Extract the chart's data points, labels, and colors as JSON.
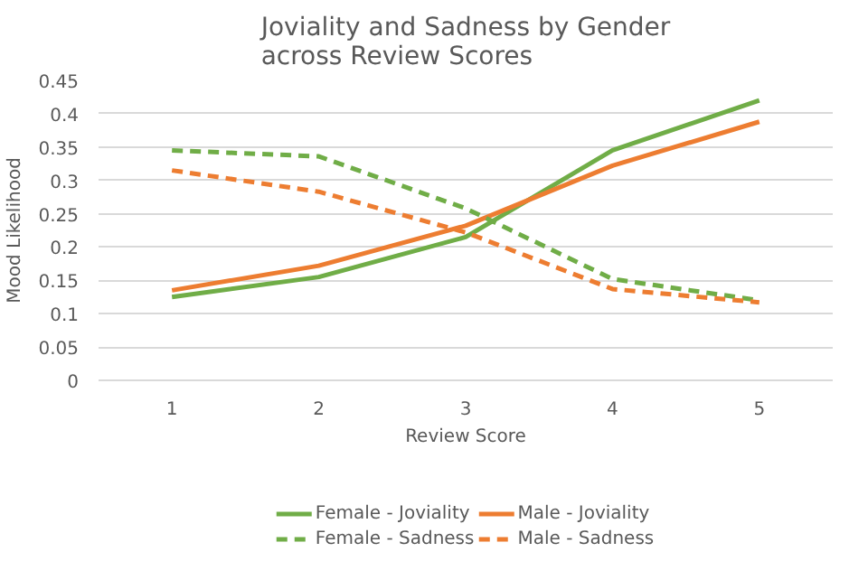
{
  "chart_data": {
    "type": "line",
    "title": "Joviality and Sadness by Gender\nacross Review Scores",
    "xlabel": "Review Score",
    "ylabel": "Mood Likelihood",
    "categories": [
      "1",
      "2",
      "3",
      "4",
      "5"
    ],
    "series": [
      {
        "name": "Female - Joviality",
        "color": "#70ad47",
        "line_style": "solid",
        "values": [
          0.125,
          0.155,
          0.215,
          0.345,
          0.42
        ]
      },
      {
        "name": "Male - Joviality",
        "color": "#ed7d31",
        "line_style": "solid",
        "values": [
          0.135,
          0.172,
          0.232,
          0.322,
          0.388
        ]
      },
      {
        "name": "Female - Sadness",
        "color": "#70ad47",
        "line_style": "dashed",
        "values": [
          0.345,
          0.336,
          0.258,
          0.152,
          0.12
        ]
      },
      {
        "name": "Male - Sadness",
        "color": "#ed7d31",
        "line_style": "dashed",
        "values": [
          0.315,
          0.283,
          0.222,
          0.137,
          0.117
        ]
      }
    ],
    "ylim": [
      0,
      0.45
    ],
    "yticks": [
      0,
      0.05,
      0.1,
      0.15,
      0.2,
      0.25,
      0.3,
      0.35,
      0.4,
      0.45
    ],
    "grid": "y",
    "legend": "bottom"
  }
}
